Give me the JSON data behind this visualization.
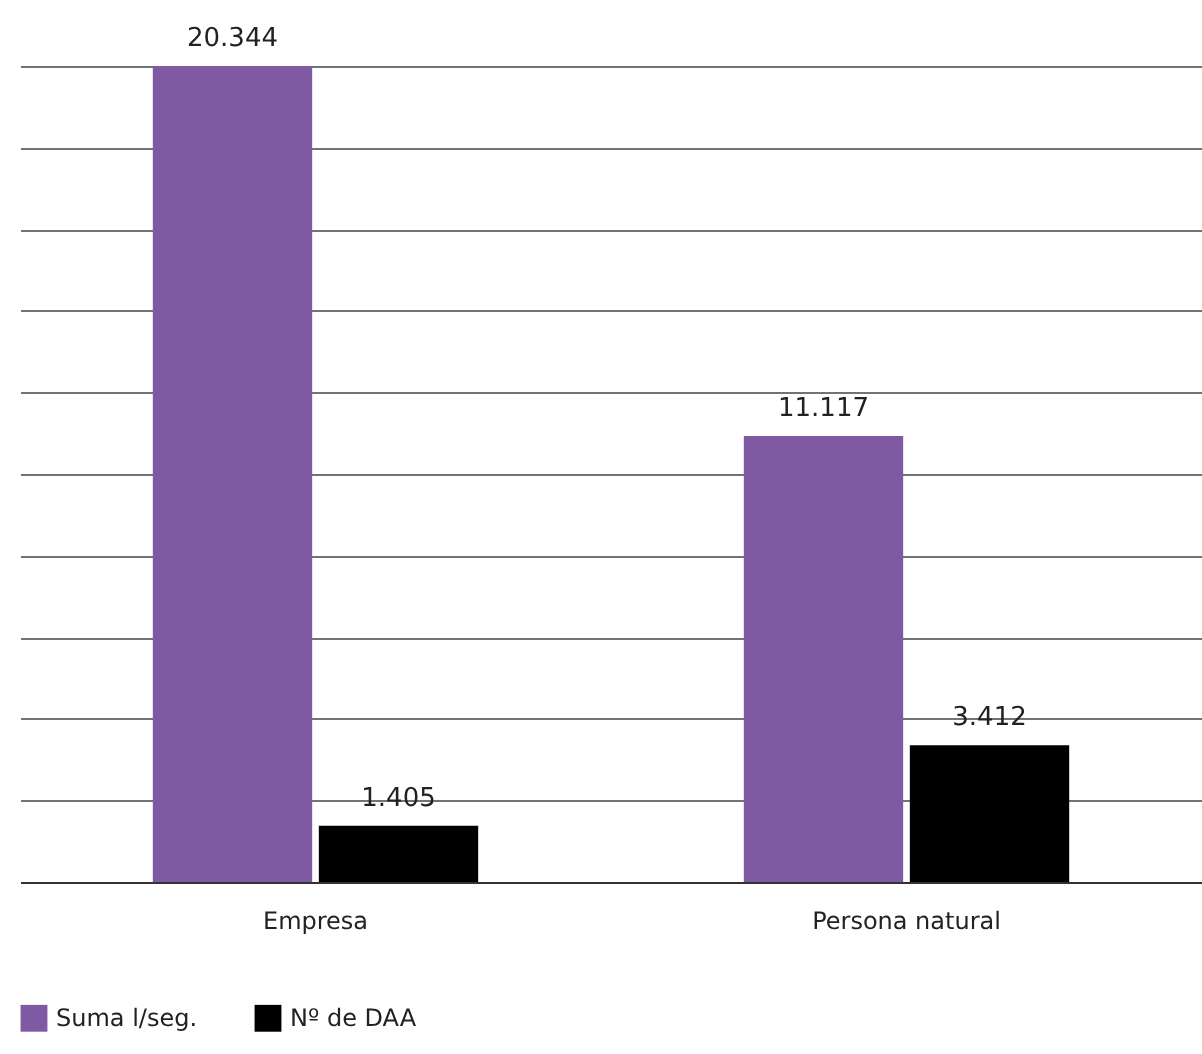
{
  "chart_data": {
    "type": "bar",
    "categories": [
      "Empresa",
      "Persona natural"
    ],
    "series": [
      {
        "name": "Suma l/seg.",
        "color": "#7f5aa2",
        "values": [
          20344,
          11117
        ],
        "value_labels": [
          "20.344",
          "11.117"
        ]
      },
      {
        "name": "Nº de DAA",
        "color": "#000000",
        "values": [
          1405,
          3412
        ],
        "value_labels": [
          "1.405",
          "3.412"
        ]
      }
    ],
    "ylim": [
      0,
      20344
    ],
    "yticks": [
      {
        "value": 0,
        "label": null
      },
      {
        "value": 2034.4,
        "label": null
      },
      {
        "value": 4068.8,
        "label": null
      },
      {
        "value": 6103.2,
        "label": null
      },
      {
        "value": 8137.6,
        "label": null
      },
      {
        "value": 10172,
        "label": null
      },
      {
        "value": 12206.4,
        "label": null
      },
      {
        "value": 14240.8,
        "label": null
      },
      {
        "value": 16275.2,
        "label": null
      },
      {
        "value": 18309.6,
        "label": null
      },
      {
        "value": 20344,
        "label": null
      }
    ],
    "grid": "y",
    "legend": "bottom"
  }
}
